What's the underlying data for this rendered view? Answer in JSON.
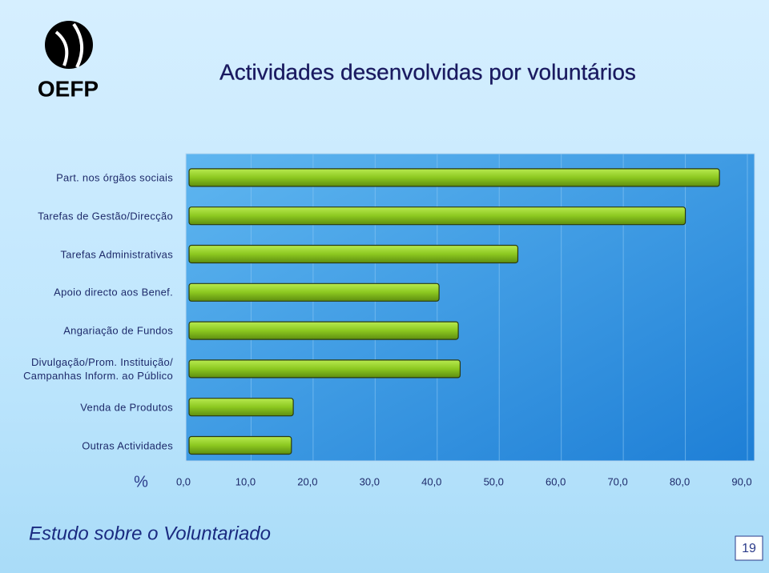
{
  "logo": "OEFP",
  "chart_data": {
    "type": "bar",
    "orientation": "horizontal",
    "title": "Actividades desenvolvidas por voluntários",
    "categories": [
      "Part. nos órgãos sociais",
      "Tarefas de Gestão/Direcção",
      "Tarefas Administrativas",
      "Apoio directo aos Benef.",
      "Angariação de Fundos",
      "Divulgação/Prom. Instituição/\nCampanhas Inform. ao Público",
      "Venda de Produtos",
      "Outras Actividades"
    ],
    "values": [
      85.5,
      80,
      53,
      40.3,
      43.4,
      43.7,
      16.8,
      16.5
    ],
    "color": "#8cc820",
    "x_label": "%",
    "xlim": [
      0,
      90
    ],
    "xticks": [
      {
        "value": 0,
        "label": "0,0"
      },
      {
        "value": 10,
        "label": "10,0"
      },
      {
        "value": 20,
        "label": "20,0"
      },
      {
        "value": 30,
        "label": "30,0"
      },
      {
        "value": 40,
        "label": "40,0"
      },
      {
        "value": 50,
        "label": "50,0"
      },
      {
        "value": 60,
        "label": "60,0"
      },
      {
        "value": 70,
        "label": "70,0"
      },
      {
        "value": 80,
        "label": "80,0"
      },
      {
        "value": 90,
        "label": "90,0"
      }
    ],
    "grid": true
  },
  "footer": {
    "text": "Estudo sobre o Voluntariado",
    "page": "19"
  }
}
